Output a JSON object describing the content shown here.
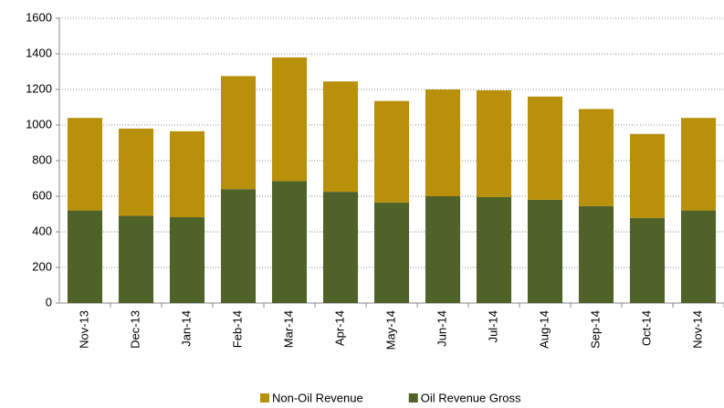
{
  "chart_data": {
    "type": "stacked_bar",
    "categories": [
      "Nov-13",
      "Dec-13",
      "Jan-14",
      "Feb-14",
      "Mar-14",
      "Apr-14",
      "May-14",
      "Jun-14",
      "Jul-14",
      "Aug-14",
      "Sep-14",
      "Oct-14",
      "Nov-14"
    ],
    "series": [
      {
        "name": "Non-Oil Revenue",
        "color": "#b8900a",
        "values": [
          520,
          490,
          483,
          635,
          695,
          620,
          570,
          600,
          600,
          580,
          545,
          472,
          520
        ]
      },
      {
        "name": "Oil Revenue Gross",
        "color": "#4f6228",
        "values": [
          520,
          490,
          482,
          640,
          685,
          625,
          565,
          600,
          595,
          580,
          545,
          478,
          520
        ]
      }
    ],
    "ylim": [
      0,
      1600
    ],
    "yticks": [
      0,
      200,
      400,
      600,
      800,
      1000,
      1200,
      1400,
      1600
    ],
    "grid": true,
    "legend": "bottom"
  }
}
